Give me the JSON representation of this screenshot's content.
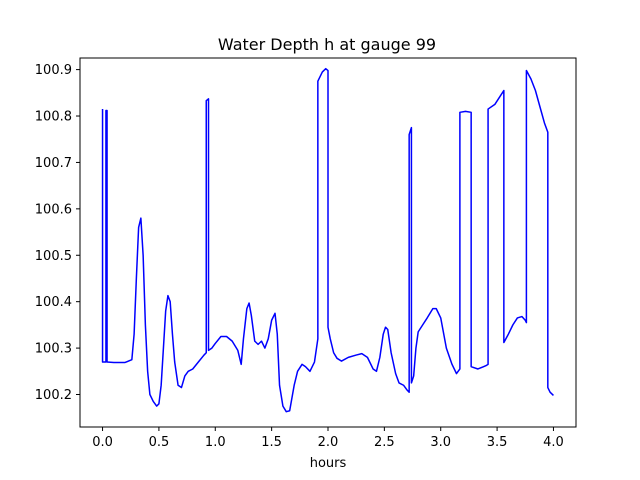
{
  "chart_data": {
    "type": "line",
    "title": "Water Depth h at gauge 99",
    "xlabel": "hours",
    "ylabel": "",
    "xlim": [
      -0.2,
      4.2
    ],
    "ylim": [
      100.13,
      100.925
    ],
    "xticks": [
      0.0,
      0.5,
      1.0,
      1.5,
      2.0,
      2.5,
      3.0,
      3.5,
      4.0
    ],
    "xtick_labels": [
      "0.0",
      "0.5",
      "1.0",
      "1.5",
      "2.0",
      "2.5",
      "3.0",
      "3.5",
      "4.0"
    ],
    "yticks": [
      100.2,
      100.3,
      100.4,
      100.5,
      100.6,
      100.7,
      100.8,
      100.9
    ],
    "ytick_labels": [
      "100.2",
      "100.3",
      "100.4",
      "100.5",
      "100.6",
      "100.7",
      "100.8",
      "100.9"
    ],
    "grid": false,
    "series": [
      {
        "color": "#0000ff",
        "points": [
          [
            0.0,
            100.815
          ],
          [
            0.0,
            100.27
          ],
          [
            0.03,
            100.27
          ],
          [
            0.03,
            100.812
          ],
          [
            0.04,
            100.812
          ],
          [
            0.04,
            100.27
          ],
          [
            0.1,
            100.269
          ],
          [
            0.2,
            100.269
          ],
          [
            0.26,
            100.275
          ],
          [
            0.28,
            100.33
          ],
          [
            0.3,
            100.45
          ],
          [
            0.32,
            100.56
          ],
          [
            0.34,
            100.58
          ],
          [
            0.36,
            100.5
          ],
          [
            0.38,
            100.35
          ],
          [
            0.4,
            100.25
          ],
          [
            0.42,
            100.2
          ],
          [
            0.45,
            100.185
          ],
          [
            0.48,
            100.175
          ],
          [
            0.5,
            100.18
          ],
          [
            0.52,
            100.22
          ],
          [
            0.54,
            100.3
          ],
          [
            0.56,
            100.38
          ],
          [
            0.58,
            100.413
          ],
          [
            0.6,
            100.4
          ],
          [
            0.62,
            100.33
          ],
          [
            0.64,
            100.27
          ],
          [
            0.67,
            100.22
          ],
          [
            0.7,
            100.215
          ],
          [
            0.73,
            100.24
          ],
          [
            0.76,
            100.25
          ],
          [
            0.8,
            100.255
          ],
          [
            0.85,
            100.27
          ],
          [
            0.9,
            100.285
          ],
          [
            0.92,
            100.29
          ],
          [
            0.92,
            100.833
          ],
          [
            0.94,
            100.837
          ],
          [
            0.94,
            100.295
          ],
          [
            0.97,
            100.3
          ],
          [
            1.0,
            100.31
          ],
          [
            1.05,
            100.325
          ],
          [
            1.1,
            100.325
          ],
          [
            1.15,
            100.315
          ],
          [
            1.2,
            100.295
          ],
          [
            1.23,
            100.265
          ],
          [
            1.25,
            100.32
          ],
          [
            1.28,
            100.385
          ],
          [
            1.3,
            100.397
          ],
          [
            1.32,
            100.37
          ],
          [
            1.35,
            100.315
          ],
          [
            1.38,
            100.308
          ],
          [
            1.41,
            100.315
          ],
          [
            1.44,
            100.3
          ],
          [
            1.47,
            100.32
          ],
          [
            1.5,
            100.36
          ],
          [
            1.53,
            100.375
          ],
          [
            1.55,
            100.33
          ],
          [
            1.57,
            100.22
          ],
          [
            1.6,
            100.175
          ],
          [
            1.63,
            100.163
          ],
          [
            1.66,
            100.165
          ],
          [
            1.7,
            100.22
          ],
          [
            1.73,
            100.25
          ],
          [
            1.77,
            100.265
          ],
          [
            1.8,
            100.26
          ],
          [
            1.84,
            100.25
          ],
          [
            1.88,
            100.27
          ],
          [
            1.91,
            100.32
          ],
          [
            1.91,
            100.875
          ],
          [
            1.95,
            100.895
          ],
          [
            1.98,
            100.902
          ],
          [
            2.0,
            100.898
          ],
          [
            2.0,
            100.345
          ],
          [
            2.02,
            100.32
          ],
          [
            2.05,
            100.29
          ],
          [
            2.08,
            100.278
          ],
          [
            2.12,
            100.272
          ],
          [
            2.18,
            100.28
          ],
          [
            2.25,
            100.285
          ],
          [
            2.3,
            100.288
          ],
          [
            2.35,
            100.28
          ],
          [
            2.4,
            100.255
          ],
          [
            2.43,
            100.25
          ],
          [
            2.46,
            100.28
          ],
          [
            2.49,
            100.33
          ],
          [
            2.51,
            100.345
          ],
          [
            2.53,
            100.34
          ],
          [
            2.56,
            100.29
          ],
          [
            2.6,
            100.245
          ],
          [
            2.63,
            100.225
          ],
          [
            2.67,
            100.22
          ],
          [
            2.7,
            100.21
          ],
          [
            2.72,
            100.205
          ],
          [
            2.72,
            100.76
          ],
          [
            2.74,
            100.775
          ],
          [
            2.74,
            100.225
          ],
          [
            2.76,
            100.24
          ],
          [
            2.78,
            100.3
          ],
          [
            2.8,
            100.335
          ],
          [
            2.84,
            100.35
          ],
          [
            2.88,
            100.365
          ],
          [
            2.93,
            100.385
          ],
          [
            2.96,
            100.385
          ],
          [
            3.0,
            100.365
          ],
          [
            3.05,
            100.3
          ],
          [
            3.1,
            100.265
          ],
          [
            3.14,
            100.245
          ],
          [
            3.17,
            100.255
          ],
          [
            3.17,
            100.808
          ],
          [
            3.22,
            100.81
          ],
          [
            3.27,
            100.808
          ],
          [
            3.27,
            100.26
          ],
          [
            3.33,
            100.255
          ],
          [
            3.38,
            100.26
          ],
          [
            3.4,
            100.262
          ],
          [
            3.42,
            100.265
          ],
          [
            3.42,
            100.815
          ],
          [
            3.48,
            100.825
          ],
          [
            3.52,
            100.84
          ],
          [
            3.56,
            100.855
          ],
          [
            3.56,
            100.312
          ],
          [
            3.6,
            100.33
          ],
          [
            3.64,
            100.35
          ],
          [
            3.68,
            100.365
          ],
          [
            3.72,
            100.368
          ],
          [
            3.75,
            100.36
          ],
          [
            3.76,
            100.355
          ],
          [
            3.76,
            100.898
          ],
          [
            3.8,
            100.88
          ],
          [
            3.84,
            100.855
          ],
          [
            3.88,
            100.82
          ],
          [
            3.92,
            100.785
          ],
          [
            3.95,
            100.765
          ],
          [
            3.95,
            100.215
          ],
          [
            3.97,
            100.205
          ],
          [
            4.0,
            100.198
          ]
        ]
      }
    ]
  }
}
